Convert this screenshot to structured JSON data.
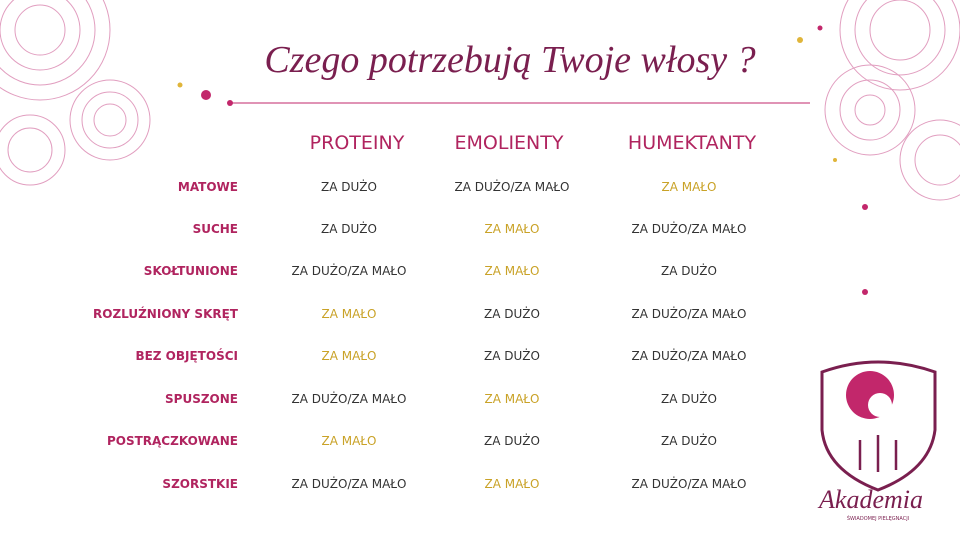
{
  "title": "Czego potrzebują Twoje włosy ?",
  "table": {
    "columns": [
      "PROTEINY",
      "EMOLIENTY",
      "HUMEKTANTY"
    ],
    "rows": [
      {
        "label": "MATOWE",
        "cells": [
          "ZA DUŻO",
          "ZA DUŻO/ZA MAŁO",
          "ZA MAŁO"
        ]
      },
      {
        "label": "SUCHE",
        "cells": [
          "ZA DUŻO",
          "ZA MAŁO",
          "ZA DUŻO/ZA MAŁO"
        ]
      },
      {
        "label": "SKOŁTUNIONE",
        "cells": [
          "ZA DUŻO/ZA MAŁO",
          "ZA MAŁO",
          "ZA DUŻO"
        ]
      },
      {
        "label": "ROZLUŹNIONY SKRĘT",
        "cells": [
          "ZA MAŁO",
          "ZA DUŻO",
          "ZA DUŻO/ZA MAŁO"
        ]
      },
      {
        "label": "BEZ OBJĘTOŚCI",
        "cells": [
          "ZA MAŁO",
          "ZA DUŻO",
          "ZA DUŻO/ZA MAŁO"
        ]
      },
      {
        "label": "SPUSZONE",
        "cells": [
          "ZA DUŻO/ZA MAŁO",
          "ZA MAŁO",
          "ZA DUŻO"
        ]
      },
      {
        "label": "POSTRĄCZKOWANE",
        "cells": [
          "ZA MAŁO",
          "ZA DUŻO",
          "ZA DUŻO"
        ]
      },
      {
        "label": "SZORSTKIE",
        "cells": [
          "ZA DUŻO/ZA MAŁO",
          "ZA MAŁO",
          "ZA DUŻO/ZA MAŁO"
        ]
      }
    ]
  },
  "logo": {
    "title": "Akademia",
    "subtitle": "ŚWIADOMEJ PIELĘGNACJI"
  }
}
